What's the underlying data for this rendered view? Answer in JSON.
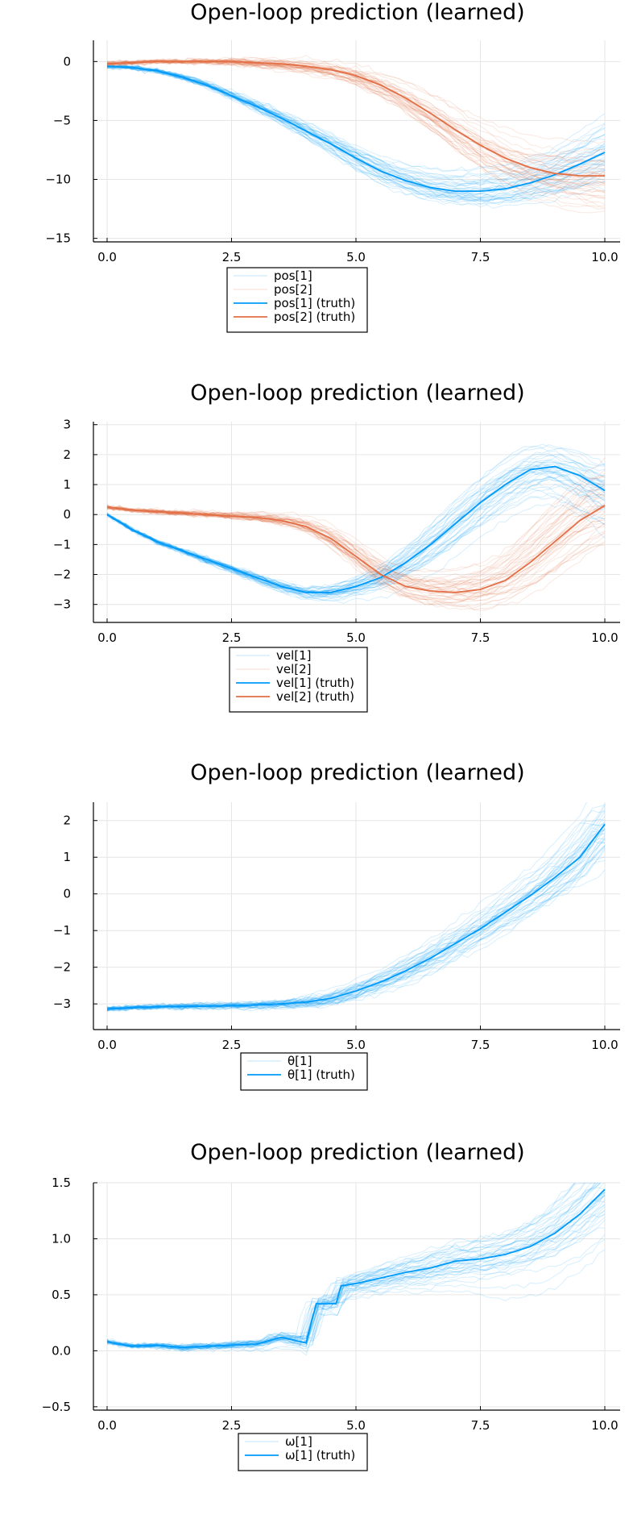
{
  "chart_data": [
    {
      "type": "line",
      "title": "Open-loop prediction (learned)",
      "xlim": [
        0,
        10
      ],
      "ylim": [
        -15.3,
        1.8
      ],
      "x_ticks": [
        0,
        2.5,
        5,
        7.5,
        10
      ],
      "x_tick_labels": [
        "0.0",
        "2.5",
        "5.0",
        "7.5",
        "10.0"
      ],
      "y_ticks": [
        0,
        -5,
        -10,
        -15
      ],
      "y_tick_labels": [
        "0",
        "−5",
        "−10",
        "−15"
      ],
      "grid": true,
      "legend_position": "bottom-center",
      "legend": [
        "pos[1]",
        "pos[2]",
        "pos[1] (truth)",
        "pos[2] (truth)"
      ],
      "ensemble_size": 40,
      "series": [
        {
          "name": "pos[1] (truth)",
          "color": "#009af9",
          "x": [
            0,
            0.5,
            1,
            1.5,
            2,
            2.5,
            3,
            3.5,
            4,
            4.5,
            5,
            5.5,
            6,
            6.5,
            7,
            7.5,
            8,
            8.5,
            9,
            9.5,
            10
          ],
          "y": [
            -0.4,
            -0.5,
            -0.8,
            -1.3,
            -2.0,
            -2.9,
            -3.8,
            -4.8,
            -5.9,
            -7.0,
            -8.2,
            -9.3,
            -10.1,
            -10.7,
            -11.0,
            -11.0,
            -10.8,
            -10.3,
            -9.6,
            -8.7,
            -7.7
          ]
        },
        {
          "name": "pos[2] (truth)",
          "color": "#e26f46",
          "x": [
            0,
            0.5,
            1,
            1.5,
            2,
            2.5,
            3,
            3.5,
            4,
            4.5,
            5,
            5.5,
            6,
            6.5,
            7,
            7.5,
            8,
            8.5,
            9,
            9.5,
            10
          ],
          "y": [
            -0.2,
            -0.1,
            0.0,
            0.0,
            0.0,
            0.0,
            -0.1,
            -0.2,
            -0.4,
            -0.7,
            -1.2,
            -2.0,
            -3.1,
            -4.4,
            -5.8,
            -7.1,
            -8.2,
            -9.0,
            -9.5,
            -9.7,
            -9.7
          ]
        }
      ]
    },
    {
      "type": "line",
      "title": "Open-loop prediction (learned)",
      "xlim": [
        0,
        10
      ],
      "ylim": [
        -3.6,
        3.1
      ],
      "x_ticks": [
        0,
        2.5,
        5,
        7.5,
        10
      ],
      "x_tick_labels": [
        "0.0",
        "2.5",
        "5.0",
        "7.5",
        "10.0"
      ],
      "y_ticks": [
        3,
        2,
        1,
        0,
        -1,
        -2,
        -3
      ],
      "y_tick_labels": [
        "3",
        "2",
        "1",
        "0",
        "−1",
        "−2",
        "−3"
      ],
      "grid": true,
      "legend_position": "bottom-center",
      "legend": [
        "vel[1]",
        "vel[2]",
        "vel[1] (truth)",
        "vel[2] (truth)"
      ],
      "ensemble_size": 40,
      "series": [
        {
          "name": "vel[1] (truth)",
          "color": "#009af9",
          "x": [
            0,
            0.5,
            1,
            1.5,
            2,
            2.5,
            3,
            3.5,
            4,
            4.5,
            5,
            5.5,
            6,
            6.5,
            7,
            7.5,
            8,
            8.5,
            9,
            9.5,
            10
          ],
          "y": [
            0.0,
            -0.5,
            -0.9,
            -1.2,
            -1.5,
            -1.8,
            -2.1,
            -2.4,
            -2.6,
            -2.6,
            -2.4,
            -2.1,
            -1.6,
            -1.0,
            -0.3,
            0.4,
            1.0,
            1.5,
            1.6,
            1.3,
            0.8
          ]
        },
        {
          "name": "vel[2] (truth)",
          "color": "#e26f46",
          "x": [
            0,
            0.5,
            1,
            1.5,
            2,
            2.5,
            3,
            3.5,
            4,
            4.5,
            5,
            5.5,
            6,
            6.5,
            7,
            7.5,
            8,
            8.5,
            9,
            9.5,
            10
          ],
          "y": [
            0.25,
            0.15,
            0.1,
            0.05,
            0.0,
            -0.05,
            -0.1,
            -0.2,
            -0.4,
            -0.8,
            -1.4,
            -2.0,
            -2.4,
            -2.55,
            -2.6,
            -2.5,
            -2.2,
            -1.6,
            -0.9,
            -0.2,
            0.3
          ]
        }
      ]
    },
    {
      "type": "line",
      "title": "Open-loop prediction (learned)",
      "xlim": [
        0,
        10
      ],
      "ylim": [
        -3.7,
        2.5
      ],
      "x_ticks": [
        0,
        2.5,
        5,
        7.5,
        10
      ],
      "x_tick_labels": [
        "0.0",
        "2.5",
        "5.0",
        "7.5",
        "10.0"
      ],
      "y_ticks": [
        2,
        1,
        0,
        -1,
        -2,
        -3
      ],
      "y_tick_labels": [
        "2",
        "1",
        "0",
        "−1",
        "−2",
        "−3"
      ],
      "grid": true,
      "legend_position": "bottom-center",
      "legend": [
        "θ[1]",
        "θ[1] (truth)"
      ],
      "ensemble_size": 40,
      "series": [
        {
          "name": "θ[1] (truth)",
          "color": "#009af9",
          "x": [
            0,
            0.5,
            1,
            1.5,
            2,
            2.5,
            3,
            3.5,
            4,
            4.5,
            5,
            5.5,
            6,
            6.5,
            7,
            7.5,
            8,
            8.5,
            9,
            9.5,
            10
          ],
          "y": [
            -3.14,
            -3.1,
            -3.08,
            -3.07,
            -3.06,
            -3.05,
            -3.03,
            -3.0,
            -2.95,
            -2.85,
            -2.65,
            -2.4,
            -2.1,
            -1.75,
            -1.35,
            -0.95,
            -0.5,
            -0.05,
            0.45,
            1.0,
            1.9
          ]
        }
      ]
    },
    {
      "type": "line",
      "title": "Open-loop prediction (learned)",
      "xlim": [
        0,
        10
      ],
      "ylim": [
        -0.53,
        1.5
      ],
      "x_ticks": [
        0,
        2.5,
        5,
        7.5,
        10
      ],
      "x_tick_labels": [
        "0.0",
        "2.5",
        "5.0",
        "7.5",
        "10.0"
      ],
      "y_ticks": [
        1.5,
        1.0,
        0.5,
        0.0,
        -0.5
      ],
      "y_tick_labels": [
        "1.5",
        "1.0",
        "0.5",
        "0.0",
        "−0.5"
      ],
      "grid": true,
      "legend_position": "bottom-center",
      "legend": [
        "ω[1]",
        "ω[1] (truth)"
      ],
      "ensemble_size": 40,
      "series": [
        {
          "name": "ω[1] (truth)",
          "color": "#009af9",
          "x": [
            0,
            0.5,
            1,
            1.5,
            2,
            2.5,
            3,
            3.5,
            4,
            4.2,
            4.4,
            4.6,
            4.7,
            5,
            5.5,
            6,
            6.5,
            7,
            7.5,
            8,
            8.5,
            9,
            9.5,
            10
          ],
          "y": [
            0.08,
            0.04,
            0.05,
            0.03,
            0.04,
            0.05,
            0.06,
            0.12,
            0.07,
            0.42,
            0.42,
            0.42,
            0.58,
            0.6,
            0.65,
            0.7,
            0.74,
            0.8,
            0.82,
            0.86,
            0.93,
            1.05,
            1.22,
            1.44
          ]
        }
      ]
    }
  ]
}
